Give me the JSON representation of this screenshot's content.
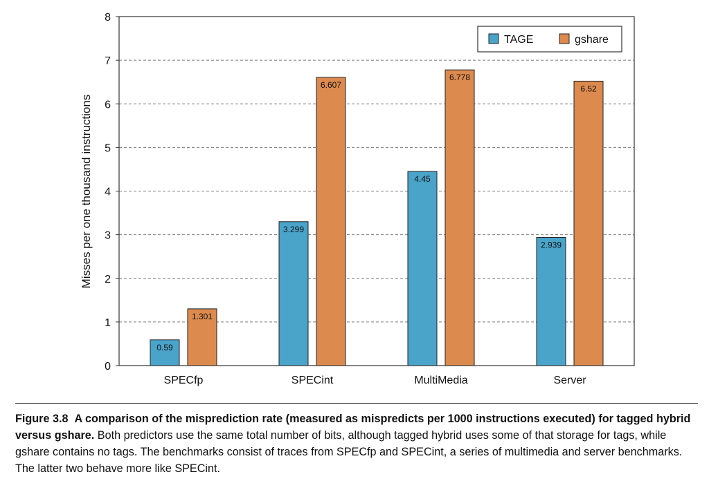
{
  "chart_data": {
    "type": "bar",
    "categories": [
      "SPECfp",
      "SPECint",
      "MultiMedia",
      "Server"
    ],
    "series": [
      {
        "name": "TAGE",
        "values": [
          0.59,
          3.299,
          4.45,
          2.939
        ],
        "color": "#4aa3c9"
      },
      {
        "name": "gshare",
        "values": [
          1.301,
          6.607,
          6.778,
          6.52
        ],
        "color": "#dc8a4e"
      }
    ],
    "ylabel": "Misses per one thousand instructions",
    "xlabel": "",
    "ylim": [
      0,
      8
    ],
    "yticks": [
      0,
      1,
      2,
      3,
      4,
      5,
      6,
      7,
      8
    ],
    "grid": "horizontal dashed",
    "legend_position": "top-right"
  },
  "caption": {
    "figure_label": "Figure 3.8",
    "bold_text": "A comparison of the misprediction rate (measured as mispredicts per 1000 instructions executed) for tagged hybrid versus gshare.",
    "body_text": "Both predictors use the same total number of bits, although tagged hybrid uses some of that storage for tags, while gshare contains no tags. The benchmarks consist of traces from SPECfp and SPECint, a series of multimedia and server benchmarks. The latter two behave more like SPECint."
  }
}
